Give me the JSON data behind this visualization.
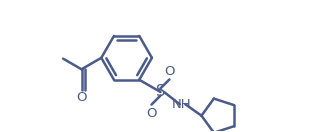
{
  "bg_color": "#ffffff",
  "line_color": "#4a5a8a",
  "line_width": 1.8,
  "figsize": [
    3.12,
    1.32
  ],
  "dpi": 100,
  "xlim": [
    -4.5,
    12.5
  ],
  "ylim": [
    -4.0,
    4.0
  ]
}
